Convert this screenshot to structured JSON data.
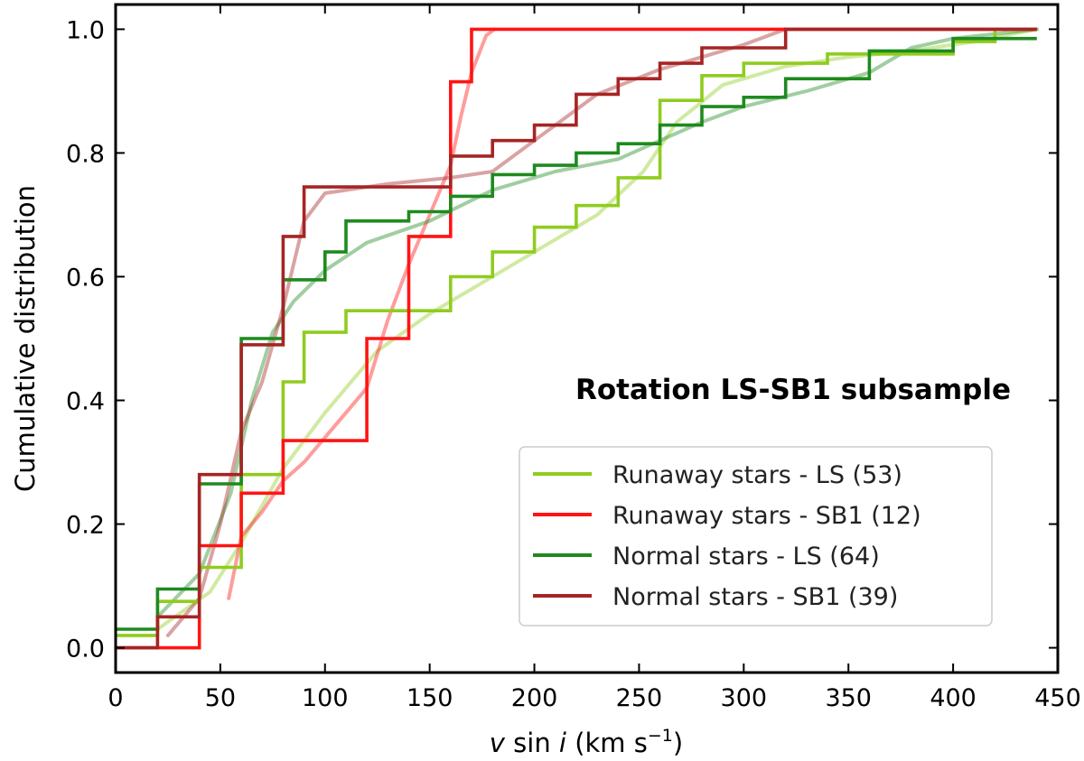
{
  "chart_data": {
    "type": "line",
    "xlabel": "v sin i (km s⁻¹)",
    "xlabel_parts": {
      "v": "v",
      "sin": " sin ",
      "i": "i",
      "units": " (km s",
      "exp": "−1",
      "close": ")"
    },
    "ylabel": "Cumulative distribution",
    "xlim": [
      0,
      450
    ],
    "ylim": [
      -0.04,
      1.04
    ],
    "xticks": [
      0,
      50,
      100,
      150,
      200,
      250,
      300,
      350,
      400,
      450
    ],
    "yticks": [
      0.0,
      0.2,
      0.4,
      0.6,
      0.8,
      1.0
    ],
    "ytick_labels": [
      "0.0",
      "0.2",
      "0.4",
      "0.6",
      "0.8",
      "1.0"
    ],
    "annotation": "Rotation LS-SB1 subsample",
    "legend_position": "lower-right",
    "series": [
      {
        "name": "Runaway stars - LS (53)",
        "color": "#8fcc1f",
        "step": [
          [
            0,
            0.02
          ],
          [
            20,
            0.02
          ],
          [
            20,
            0.075
          ],
          [
            40,
            0.075
          ],
          [
            40,
            0.13
          ],
          [
            60,
            0.13
          ],
          [
            60,
            0.28
          ],
          [
            80,
            0.28
          ],
          [
            80,
            0.43
          ],
          [
            90,
            0.43
          ],
          [
            90,
            0.51
          ],
          [
            110,
            0.51
          ],
          [
            110,
            0.545
          ],
          [
            160,
            0.545
          ],
          [
            160,
            0.6
          ],
          [
            180,
            0.6
          ],
          [
            180,
            0.64
          ],
          [
            200,
            0.64
          ],
          [
            200,
            0.68
          ],
          [
            220,
            0.68
          ],
          [
            220,
            0.715
          ],
          [
            240,
            0.715
          ],
          [
            240,
            0.76
          ],
          [
            260,
            0.76
          ],
          [
            260,
            0.775
          ],
          [
            260,
            0.885
          ],
          [
            280,
            0.885
          ],
          [
            280,
            0.925
          ],
          [
            300,
            0.925
          ],
          [
            300,
            0.945
          ],
          [
            340,
            0.945
          ],
          [
            340,
            0.96
          ],
          [
            400,
            0.96
          ],
          [
            400,
            0.98
          ],
          [
            420,
            0.98
          ],
          [
            420,
            1.0
          ],
          [
            440,
            1.0
          ]
        ],
        "smooth": [
          [
            20,
            0.03
          ],
          [
            45,
            0.09
          ],
          [
            60,
            0.17
          ],
          [
            80,
            0.29
          ],
          [
            100,
            0.38
          ],
          [
            125,
            0.48
          ],
          [
            150,
            0.54
          ],
          [
            175,
            0.59
          ],
          [
            205,
            0.65
          ],
          [
            230,
            0.7
          ],
          [
            252,
            0.77
          ],
          [
            268,
            0.85
          ],
          [
            290,
            0.91
          ],
          [
            320,
            0.94
          ],
          [
            350,
            0.955
          ],
          [
            380,
            0.965
          ],
          [
            410,
            0.98
          ],
          [
            440,
            1.0
          ]
        ]
      },
      {
        "name": "Runaway stars - SB1 (12)",
        "color": "#ff1414",
        "step": [
          [
            0,
            0.0
          ],
          [
            40,
            0.0
          ],
          [
            40,
            0.165
          ],
          [
            60,
            0.165
          ],
          [
            60,
            0.25
          ],
          [
            80,
            0.25
          ],
          [
            80,
            0.335
          ],
          [
            120,
            0.335
          ],
          [
            120,
            0.5
          ],
          [
            140,
            0.5
          ],
          [
            140,
            0.665
          ],
          [
            160,
            0.665
          ],
          [
            160,
            0.915
          ],
          [
            170,
            0.915
          ],
          [
            170,
            1.0
          ],
          [
            440,
            1.0
          ]
        ],
        "smooth": [
          [
            54,
            0.08
          ],
          [
            60,
            0.18
          ],
          [
            70,
            0.22
          ],
          [
            80,
            0.27
          ],
          [
            90,
            0.3
          ],
          [
            100,
            0.34
          ],
          [
            110,
            0.38
          ],
          [
            120,
            0.42
          ],
          [
            130,
            0.53
          ],
          [
            140,
            0.62
          ],
          [
            150,
            0.7
          ],
          [
            160,
            0.78
          ],
          [
            165,
            0.86
          ],
          [
            170,
            0.93
          ],
          [
            177,
            0.99
          ],
          [
            181,
            1.0
          ]
        ]
      },
      {
        "name": "Normal stars - LS (64)",
        "color": "#1e8a1e",
        "step": [
          [
            0,
            0.03
          ],
          [
            20,
            0.03
          ],
          [
            20,
            0.095
          ],
          [
            40,
            0.095
          ],
          [
            40,
            0.265
          ],
          [
            60,
            0.265
          ],
          [
            60,
            0.5
          ],
          [
            80,
            0.5
          ],
          [
            80,
            0.595
          ],
          [
            100,
            0.595
          ],
          [
            100,
            0.64
          ],
          [
            110,
            0.64
          ],
          [
            110,
            0.69
          ],
          [
            140,
            0.69
          ],
          [
            140,
            0.705
          ],
          [
            160,
            0.705
          ],
          [
            160,
            0.73
          ],
          [
            180,
            0.73
          ],
          [
            180,
            0.765
          ],
          [
            200,
            0.765
          ],
          [
            200,
            0.78
          ],
          [
            220,
            0.78
          ],
          [
            220,
            0.8
          ],
          [
            240,
            0.8
          ],
          [
            240,
            0.815
          ],
          [
            260,
            0.815
          ],
          [
            260,
            0.845
          ],
          [
            280,
            0.845
          ],
          [
            280,
            0.875
          ],
          [
            300,
            0.875
          ],
          [
            300,
            0.89
          ],
          [
            320,
            0.89
          ],
          [
            320,
            0.92
          ],
          [
            360,
            0.92
          ],
          [
            360,
            0.965
          ],
          [
            400,
            0.965
          ],
          [
            400,
            0.985
          ],
          [
            440,
            0.985
          ]
        ],
        "smooth": [
          [
            20,
            0.05
          ],
          [
            40,
            0.12
          ],
          [
            55,
            0.25
          ],
          [
            65,
            0.4
          ],
          [
            75,
            0.51
          ],
          [
            85,
            0.56
          ],
          [
            100,
            0.61
          ],
          [
            120,
            0.655
          ],
          [
            150,
            0.69
          ],
          [
            180,
            0.74
          ],
          [
            210,
            0.77
          ],
          [
            240,
            0.79
          ],
          [
            260,
            0.82
          ],
          [
            280,
            0.85
          ],
          [
            300,
            0.875
          ],
          [
            330,
            0.9
          ],
          [
            360,
            0.93
          ],
          [
            380,
            0.97
          ],
          [
            400,
            0.985
          ],
          [
            440,
            1.0
          ]
        ]
      },
      {
        "name": "Normal stars - SB1 (39)",
        "color": "#a62424",
        "step": [
          [
            0,
            0.0
          ],
          [
            20,
            0.0
          ],
          [
            20,
            0.05
          ],
          [
            40,
            0.05
          ],
          [
            40,
            0.28
          ],
          [
            60,
            0.28
          ],
          [
            60,
            0.49
          ],
          [
            80,
            0.49
          ],
          [
            80,
            0.665
          ],
          [
            90,
            0.665
          ],
          [
            90,
            0.745
          ],
          [
            160,
            0.745
          ],
          [
            160,
            0.795
          ],
          [
            180,
            0.795
          ],
          [
            180,
            0.82
          ],
          [
            200,
            0.82
          ],
          [
            200,
            0.845
          ],
          [
            220,
            0.845
          ],
          [
            220,
            0.895
          ],
          [
            240,
            0.895
          ],
          [
            240,
            0.92
          ],
          [
            260,
            0.92
          ],
          [
            260,
            0.945
          ],
          [
            280,
            0.945
          ],
          [
            280,
            0.97
          ],
          [
            320,
            0.97
          ],
          [
            320,
            1.0
          ],
          [
            440,
            1.0
          ]
        ],
        "smooth": [
          [
            25,
            0.02
          ],
          [
            40,
            0.08
          ],
          [
            50,
            0.2
          ],
          [
            60,
            0.35
          ],
          [
            70,
            0.43
          ],
          [
            80,
            0.55
          ],
          [
            90,
            0.69
          ],
          [
            100,
            0.735
          ],
          [
            130,
            0.75
          ],
          [
            160,
            0.76
          ],
          [
            180,
            0.77
          ],
          [
            200,
            0.82
          ],
          [
            230,
            0.895
          ],
          [
            260,
            0.935
          ],
          [
            300,
            0.975
          ],
          [
            320,
            1.0
          ]
        ]
      }
    ]
  }
}
